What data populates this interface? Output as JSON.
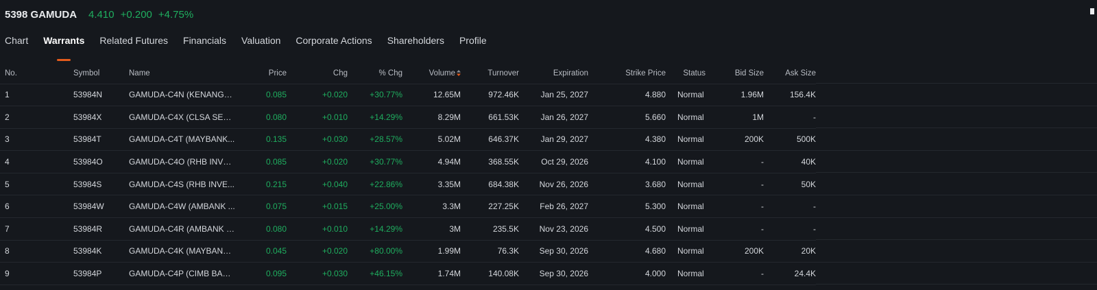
{
  "quote": {
    "ticker": "5398 GAMUDA",
    "price": "4.410",
    "change": "+0.200",
    "change_pct": "+4.75%"
  },
  "colors": {
    "up": "#1fae5f",
    "accent": "#e35b1c",
    "background": "#15181d"
  },
  "tabs": [
    {
      "label": "Chart"
    },
    {
      "label": "Warrants",
      "active": true
    },
    {
      "label": "Related Futures"
    },
    {
      "label": "Financials"
    },
    {
      "label": "Valuation"
    },
    {
      "label": "Corporate Actions"
    },
    {
      "label": "Shareholders"
    },
    {
      "label": "Profile"
    }
  ],
  "table": {
    "sort_icon": "sort-desc-icon",
    "headers": {
      "no": "No.",
      "symbol": "Symbol",
      "name": "Name",
      "price": "Price",
      "chg": "Chg",
      "pct": "% Chg",
      "volume": "Volume",
      "turnover": "Turnover",
      "expiration": "Expiration",
      "strike": "Strike Price",
      "status": "Status",
      "bid_size": "Bid Size",
      "ask_size": "Ask Size"
    },
    "rows": [
      {
        "no": "1",
        "symbol": "53984N",
        "name": "GAMUDA-C4N (KENANGA...",
        "price": "0.085",
        "chg": "+0.020",
        "pct": "+30.77%",
        "volume": "12.65M",
        "turnover": "972.46K",
        "expiration": "Jan 25, 2027",
        "strike": "4.880",
        "status": "Normal",
        "bid_size": "1.96M",
        "ask_size": "156.4K"
      },
      {
        "no": "2",
        "symbol": "53984X",
        "name": "GAMUDA-C4X (CLSA SEC...",
        "price": "0.080",
        "chg": "+0.010",
        "pct": "+14.29%",
        "volume": "8.29M",
        "turnover": "661.53K",
        "expiration": "Jan 26, 2027",
        "strike": "5.660",
        "status": "Normal",
        "bid_size": "1M",
        "ask_size": "-"
      },
      {
        "no": "3",
        "symbol": "53984T",
        "name": "GAMUDA-C4T (MAYBANK...",
        "price": "0.135",
        "chg": "+0.030",
        "pct": "+28.57%",
        "volume": "5.02M",
        "turnover": "646.37K",
        "expiration": "Jan 29, 2027",
        "strike": "4.380",
        "status": "Normal",
        "bid_size": "200K",
        "ask_size": "500K"
      },
      {
        "no": "4",
        "symbol": "53984O",
        "name": "GAMUDA-C4O (RHB INVE...",
        "price": "0.085",
        "chg": "+0.020",
        "pct": "+30.77%",
        "volume": "4.94M",
        "turnover": "368.55K",
        "expiration": "Oct 29, 2026",
        "strike": "4.100",
        "status": "Normal",
        "bid_size": "-",
        "ask_size": "40K"
      },
      {
        "no": "5",
        "symbol": "53984S",
        "name": "GAMUDA-C4S (RHB INVE...",
        "price": "0.215",
        "chg": "+0.040",
        "pct": "+22.86%",
        "volume": "3.35M",
        "turnover": "684.38K",
        "expiration": "Nov 26, 2026",
        "strike": "3.680",
        "status": "Normal",
        "bid_size": "-",
        "ask_size": "50K"
      },
      {
        "no": "6",
        "symbol": "53984W",
        "name": "GAMUDA-C4W (AMBANK ...",
        "price": "0.075",
        "chg": "+0.015",
        "pct": "+25.00%",
        "volume": "3.3M",
        "turnover": "227.25K",
        "expiration": "Feb 26, 2027",
        "strike": "5.300",
        "status": "Normal",
        "bid_size": "-",
        "ask_size": "-"
      },
      {
        "no": "7",
        "symbol": "53984R",
        "name": "GAMUDA-C4R (AMBANK (...",
        "price": "0.080",
        "chg": "+0.010",
        "pct": "+14.29%",
        "volume": "3M",
        "turnover": "235.5K",
        "expiration": "Nov 23, 2026",
        "strike": "4.500",
        "status": "Normal",
        "bid_size": "-",
        "ask_size": "-"
      },
      {
        "no": "8",
        "symbol": "53984K",
        "name": "GAMUDA-C4K (MAYBANK...",
        "price": "0.045",
        "chg": "+0.020",
        "pct": "+80.00%",
        "volume": "1.99M",
        "turnover": "76.3K",
        "expiration": "Sep 30, 2026",
        "strike": "4.680",
        "status": "Normal",
        "bid_size": "200K",
        "ask_size": "20K"
      },
      {
        "no": "9",
        "symbol": "53984P",
        "name": "GAMUDA-C4P (CIMB BAN...",
        "price": "0.095",
        "chg": "+0.030",
        "pct": "+46.15%",
        "volume": "1.74M",
        "turnover": "140.08K",
        "expiration": "Sep 30, 2026",
        "strike": "4.000",
        "status": "Normal",
        "bid_size": "-",
        "ask_size": "24.4K"
      }
    ]
  }
}
